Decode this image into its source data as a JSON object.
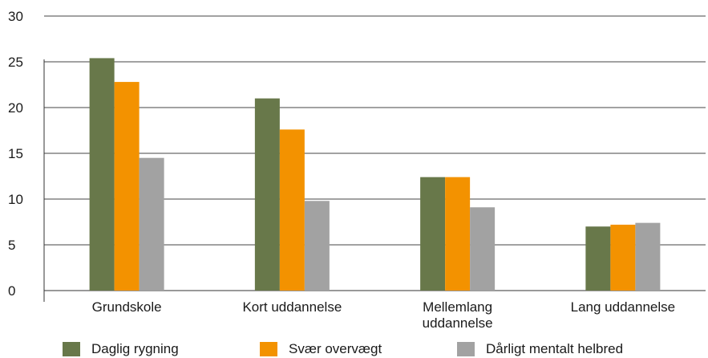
{
  "chart_data": {
    "type": "bar",
    "title": "",
    "xlabel": "",
    "ylabel": "",
    "ylim": [
      0,
      30
    ],
    "yticks": [
      0,
      5,
      10,
      15,
      20,
      25,
      30
    ],
    "grid": "horizontal",
    "legend_position": "bottom",
    "categories": [
      "Grundskole",
      "Kort uddannelse",
      "Mellemlang uddannelse",
      "Lang uddannelse"
    ],
    "category_lines": [
      [
        "Grundskole"
      ],
      [
        "Kort uddannelse"
      ],
      [
        "Mellemlang",
        "uddannelse"
      ],
      [
        "Lang uddannelse"
      ]
    ],
    "series": [
      {
        "name": "Daglig rygning",
        "color": "#68784a",
        "values": [
          25.4,
          21.0,
          12.4,
          7.0
        ]
      },
      {
        "name": "Svær overvægt",
        "color": "#f39200",
        "values": [
          22.8,
          17.6,
          12.4,
          7.2
        ]
      },
      {
        "name": "Dårligt mentalt helbred",
        "color": "#a2a2a2",
        "values": [
          14.5,
          9.8,
          9.1,
          7.4
        ]
      }
    ]
  }
}
